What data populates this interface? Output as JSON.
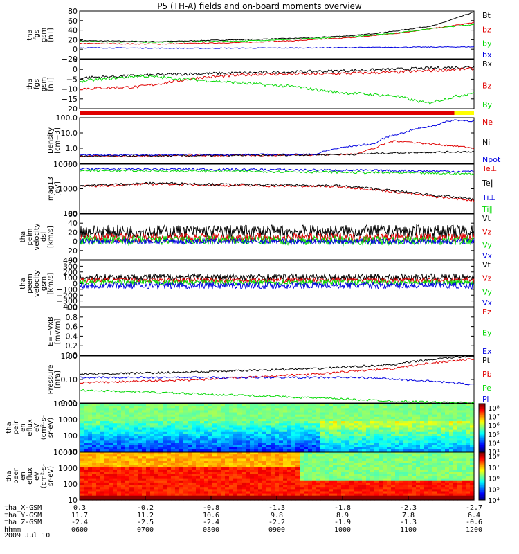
{
  "title": "P5 (TH-A) fields and on-board moments overview",
  "date_label": "2009 Jul 10",
  "colors": {
    "black": "#000000",
    "red": "#e00000",
    "green": "#00d800",
    "blue": "#0000e0",
    "yellow": "#ffff00"
  },
  "chart_data": [
    {
      "type": "line",
      "ylabel": [
        "tha",
        "fgs",
        "gsm",
        "[nT]"
      ],
      "ylim": [
        -20,
        80
      ],
      "ticks": [
        "80",
        "60",
        "40",
        "20",
        "0",
        "−20"
      ],
      "series": [
        {
          "name": "Bt",
          "color": "black",
          "points": [
            [
              0,
              18
            ],
            [
              0.2,
              16
            ],
            [
              0.4,
              20
            ],
            [
              0.55,
              23
            ],
            [
              0.7,
              29
            ],
            [
              0.8,
              38
            ],
            [
              0.9,
              50
            ],
            [
              1,
              78
            ]
          ]
        },
        {
          "name": "bz",
          "color": "red",
          "points": [
            [
              0,
              12
            ],
            [
              0.2,
              11
            ],
            [
              0.4,
              14
            ],
            [
              0.55,
              18
            ],
            [
              0.7,
              25
            ],
            [
              0.8,
              33
            ],
            [
              0.9,
              44
            ],
            [
              1,
              56
            ]
          ]
        },
        {
          "name": "by",
          "color": "green",
          "points": [
            [
              0,
              16
            ],
            [
              0.2,
              15
            ],
            [
              0.4,
              17
            ],
            [
              0.55,
              21
            ],
            [
              0.7,
              27
            ],
            [
              0.8,
              34
            ],
            [
              0.9,
              44
            ],
            [
              1,
              52
            ]
          ]
        },
        {
          "name": "bx",
          "color": "blue",
          "points": [
            [
              0,
              3
            ],
            [
              0.3,
              2
            ],
            [
              0.6,
              3
            ],
            [
              0.8,
              4
            ],
            [
              1,
              5
            ]
          ]
        }
      ]
    },
    {
      "type": "line",
      "ylabel": [
        "tha",
        "fgs",
        "gsm",
        "[nT]"
      ],
      "ylim": [
        -22,
        5
      ],
      "ticks": [
        "5",
        "0",
        "−5",
        "−10",
        "−15",
        "−20"
      ],
      "series": [
        {
          "name": "Bx",
          "color": "black",
          "points": [
            [
              0,
              -5
            ],
            [
              0.25,
              -3
            ],
            [
              0.5,
              -2
            ],
            [
              0.7,
              -1
            ],
            [
              0.85,
              0
            ],
            [
              1,
              1
            ]
          ]
        },
        {
          "name": "Bz",
          "color": "red",
          "points": [
            [
              0,
              -11
            ],
            [
              0.15,
              -10
            ],
            [
              0.3,
              -5
            ],
            [
              0.45,
              -3
            ],
            [
              0.6,
              -3
            ],
            [
              0.8,
              -2
            ],
            [
              0.9,
              -1
            ],
            [
              1,
              0
            ]
          ]
        },
        {
          "name": "By",
          "color": "green",
          "points": [
            [
              0,
              -7
            ],
            [
              0.15,
              -4
            ],
            [
              0.35,
              -7
            ],
            [
              0.55,
              -10
            ],
            [
              0.65,
              -13
            ],
            [
              0.8,
              -15
            ],
            [
              0.88,
              -19
            ],
            [
              1,
              -13
            ]
          ]
        }
      ]
    },
    {
      "type": "line",
      "ylabel": [
        "Density",
        "[cm−3]"
      ],
      "yscale": "log",
      "ylim": [
        0.1,
        100
      ],
      "ticks": [
        "100.0",
        "10.0",
        "1.0",
        "0.1"
      ],
      "series": [
        {
          "name": "Ne",
          "color": "red",
          "points": [
            [
              0,
              0.3
            ],
            [
              0.5,
              0.35
            ],
            [
              0.7,
              0.4
            ],
            [
              0.75,
              1
            ],
            [
              0.8,
              3
            ],
            [
              0.88,
              2
            ],
            [
              1,
              1
            ]
          ]
        },
        {
          "name": "Ni",
          "color": "black",
          "points": [
            [
              0,
              0.3
            ],
            [
              0.5,
              0.35
            ],
            [
              0.7,
              0.4
            ],
            [
              0.8,
              0.5
            ],
            [
              1,
              0.6
            ]
          ]
        },
        {
          "name": "Npot",
          "color": "blue",
          "points": [
            [
              0,
              0.35
            ],
            [
              0.6,
              0.4
            ],
            [
              0.75,
              2
            ],
            [
              0.82,
              10
            ],
            [
              0.9,
              30
            ],
            [
              0.95,
              70
            ],
            [
              1,
              60
            ]
          ]
        }
      ]
    },
    {
      "type": "line",
      "ylabel": [
        "mag13",
        "[eV]"
      ],
      "yscale": "log",
      "ylim": [
        50,
        10000
      ],
      "ticks": [
        "10000",
        "1000",
        "100"
      ],
      "series": [
        {
          "name": "Te⊥",
          "color": "red",
          "points": [
            [
              0,
              900
            ],
            [
              0.2,
              1200
            ],
            [
              0.4,
              1000
            ],
            [
              0.65,
              900
            ],
            [
              0.8,
              500
            ],
            [
              0.9,
              300
            ],
            [
              1,
              200
            ]
          ]
        },
        {
          "name": "Te∥",
          "color": "black",
          "points": [
            [
              0,
              1000
            ],
            [
              0.2,
              1300
            ],
            [
              0.4,
              1100
            ],
            [
              0.65,
              1000
            ],
            [
              0.8,
              550
            ],
            [
              0.9,
              350
            ],
            [
              1,
              220
            ]
          ]
        },
        {
          "name": "Ti⊥",
          "color": "blue",
          "points": [
            [
              0,
              6000
            ],
            [
              0.5,
              5500
            ],
            [
              1,
              4500
            ]
          ]
        },
        {
          "name": "Ti∥",
          "color": "green",
          "points": [
            [
              0,
              5000
            ],
            [
              0.5,
              4500
            ],
            [
              1,
              3500
            ]
          ]
        }
      ]
    },
    {
      "type": "line",
      "ylabel": [
        "tha",
        "peim",
        "velocity",
        "dsl",
        "[km/s]"
      ],
      "ylim": [
        -40,
        60
      ],
      "ticks": [
        "60",
        "40",
        "20",
        "0",
        "−20",
        "−40"
      ],
      "series": [
        {
          "name": "Vt",
          "color": "black",
          "mean": 22,
          "noise": 14
        },
        {
          "name": "Vz",
          "color": "red",
          "mean": 8,
          "noise": 10
        },
        {
          "name": "Vy",
          "color": "green",
          "mean": 2,
          "noise": 10
        },
        {
          "name": "Vx",
          "color": "blue",
          "mean": 0,
          "noise": 6
        }
      ]
    },
    {
      "type": "line",
      "ylabel": [
        "tha",
        "peem",
        "velocity",
        "gsm",
        "[km/s]"
      ],
      "ylim": [
        -400,
        400
      ],
      "ticks": [
        "400",
        "300",
        "200",
        "100",
        "0",
        "−100",
        "−200",
        "−300",
        "−400"
      ],
      "series": [
        {
          "name": "Vt",
          "color": "black",
          "mean": 110,
          "noise": 60
        },
        {
          "name": "Vz",
          "color": "red",
          "mean": 60,
          "noise": 40
        },
        {
          "name": "Vy",
          "color": "green",
          "mean": 20,
          "noise": 45
        },
        {
          "name": "Vx",
          "color": "blue",
          "mean": -30,
          "noise": 60
        }
      ]
    },
    {
      "type": "line",
      "ylabel": [
        "E=−VxB",
        "[mV/m]"
      ],
      "ylim": [
        0,
        1
      ],
      "ticks": [
        "1.0",
        "0.8",
        "0.6",
        "0.4",
        "0.2",
        "0.0"
      ],
      "series": [
        {
          "name": "Ez",
          "color": "red",
          "points": []
        },
        {
          "name": "Ey",
          "color": "green",
          "points": []
        },
        {
          "name": "Ex",
          "color": "blue",
          "points": []
        }
      ]
    },
    {
      "type": "line",
      "ylabel": [
        "Pressure",
        "[nPa]"
      ],
      "yscale": "log",
      "ylim": [
        0.008,
        3
      ],
      "ticks": [
        "1.00",
        "0.10",
        "0.01"
      ],
      "series": [
        {
          "name": "Pt",
          "color": "black",
          "points": [
            [
              0,
              0.3
            ],
            [
              0.3,
              0.4
            ],
            [
              0.6,
              0.6
            ],
            [
              0.8,
              1
            ],
            [
              1,
              3
            ]
          ]
        },
        {
          "name": "Pb",
          "color": "red",
          "points": [
            [
              0,
              0.1
            ],
            [
              0.3,
              0.15
            ],
            [
              0.6,
              0.3
            ],
            [
              0.8,
              0.6
            ],
            [
              1,
              2
            ]
          ]
        },
        {
          "name": "Pe",
          "color": "green",
          "points": [
            [
              0,
              0.04
            ],
            [
              0.3,
              0.025
            ],
            [
              0.6,
              0.015
            ],
            [
              0.8,
              0.01
            ],
            [
              1,
              0.008
            ]
          ]
        },
        {
          "name": "Pi",
          "color": "blue",
          "points": [
            [
              0,
              0.2
            ],
            [
              0.4,
              0.2
            ],
            [
              0.7,
              0.2
            ],
            [
              0.9,
              0.12
            ],
            [
              1,
              0.08
            ]
          ]
        }
      ]
    },
    {
      "type": "heatmap",
      "ylabel": [
        "tha",
        "peir",
        "en",
        "eflux",
        "eV",
        "(cm²-s-",
        "sr-eV)"
      ],
      "yscale": "log",
      "ylim": [
        10,
        20000
      ],
      "ticks": [
        "10000",
        "1000",
        "100",
        "10"
      ],
      "colorbar": [
        "10⁸",
        "10⁷",
        "10⁶",
        "10⁵",
        "10⁴",
        "10³"
      ]
    },
    {
      "type": "heatmap",
      "ylabel": [
        "tha",
        "peer",
        "en",
        "eflux",
        "eV",
        "(cm²-s-",
        "sr-eV)"
      ],
      "yscale": "log",
      "ylim": [
        10,
        20000
      ],
      "ticks": [
        "10000",
        "1000",
        "100",
        "10"
      ],
      "colorbar": [
        "10⁸",
        "10⁷",
        "10⁶",
        "10⁵",
        "10⁴"
      ]
    }
  ],
  "ephemeris": {
    "labels": [
      "tha_X-GSM",
      "tha_Y-GSM",
      "tha_Z-GSM",
      "hhmm"
    ],
    "rows": [
      [
        "0.3",
        "-0.2",
        "-0.8",
        "-1.3",
        "-1.8",
        "-2.3",
        "-2.7"
      ],
      [
        "11.7",
        "11.2",
        "10.6",
        "9.8",
        "8.9",
        "7.8",
        "6.4"
      ],
      [
        "-2.4",
        "-2.5",
        "-2.4",
        "-2.2",
        "-1.9",
        "-1.3",
        "-0.6"
      ],
      [
        "0600",
        "0700",
        "0800",
        "0900",
        "1000",
        "1100",
        "1200"
      ]
    ]
  }
}
